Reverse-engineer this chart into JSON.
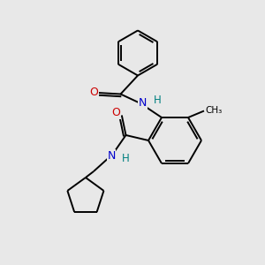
{
  "background_color": "#e8e8e8",
  "bond_color": "#000000",
  "O_color": "#cc0000",
  "N_color": "#0000cc",
  "H_color": "#008080",
  "figsize": [
    3.0,
    3.0
  ],
  "dpi": 100,
  "xlim": [
    0,
    10
  ],
  "ylim": [
    0,
    10
  ]
}
